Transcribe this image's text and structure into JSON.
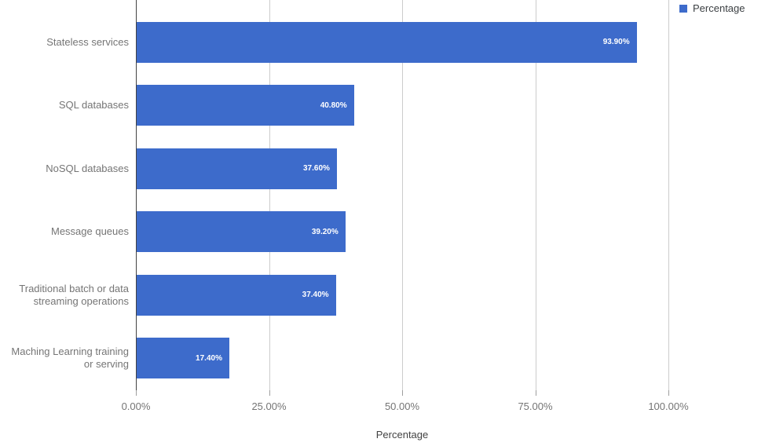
{
  "chart_data": {
    "type": "bar",
    "orientation": "horizontal",
    "title": "",
    "xlabel": "Percentage",
    "ylabel": "",
    "series_name": "Percentage",
    "categories": [
      "Stateless services",
      "SQL databases",
      "NoSQL databases",
      "Message queues",
      "Traditional batch or data streaming operations",
      "Maching Learning training or serving"
    ],
    "values": [
      93.9,
      40.8,
      37.6,
      39.2,
      37.4,
      17.4
    ],
    "bar_labels": [
      "93.90%",
      "40.80%",
      "37.60%",
      "39.20%",
      "37.40%",
      "17.40%"
    ],
    "xlim": [
      0,
      100
    ],
    "x_tick_values": [
      0,
      25,
      50,
      75,
      100
    ],
    "x_tick_labels": [
      "0.00%",
      "25.00%",
      "50.00%",
      "75.00%",
      "100.00%"
    ],
    "grid": "vertical gridlines on",
    "legend_position": "top-right",
    "colors": {
      "bar": "#3d6bcb",
      "bar_value_text": "#ffffff",
      "gridline": "#cccccc",
      "baseline": "#424242",
      "tick_mark": "#9e9e9e",
      "tick_label_text": "#757575",
      "category_label_text": "#757575",
      "axis_title_text": "#424242",
      "legend_text": "#3c4043",
      "background": "#ffffff"
    }
  }
}
